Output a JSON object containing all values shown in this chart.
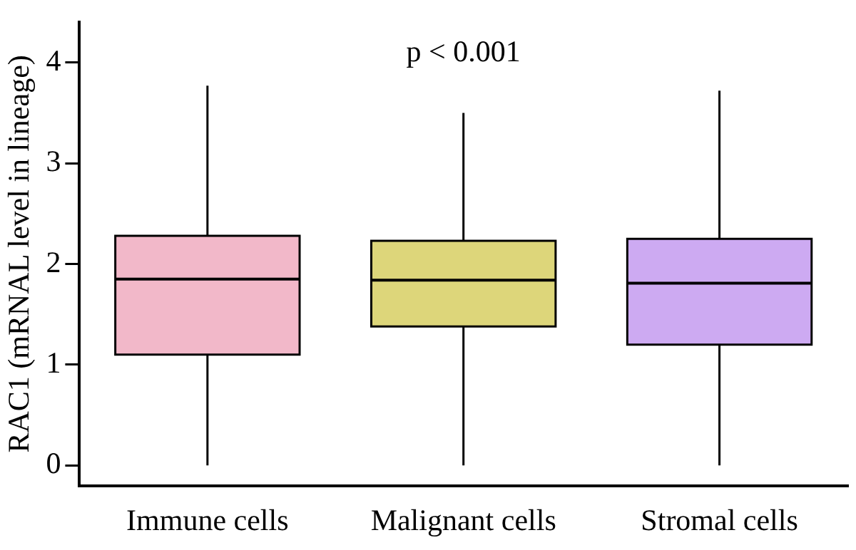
{
  "chart_data": {
    "type": "box",
    "ylabel": "RAC1 (mRNAL level in lineage)",
    "categories": [
      "Immune cells",
      "Malignant cells",
      "Stromal cells"
    ],
    "colors": [
      "#f2b8c9",
      "#ddd67a",
      "#cdaaf2"
    ],
    "boxes": [
      {
        "low": 0,
        "q1": 1.1,
        "median": 1.85,
        "q3": 2.28,
        "high": 3.77
      },
      {
        "low": 0,
        "q1": 1.38,
        "median": 1.84,
        "q3": 2.23,
        "high": 3.5
      },
      {
        "low": 0,
        "q1": 1.2,
        "median": 1.81,
        "q3": 2.25,
        "high": 3.72
      }
    ],
    "ylim": [
      -0.2,
      4.4
    ],
    "yticks": [
      0,
      1,
      2,
      3,
      4
    ],
    "grid": false,
    "legend": false,
    "annotations": [
      "p < 0.001"
    ]
  }
}
